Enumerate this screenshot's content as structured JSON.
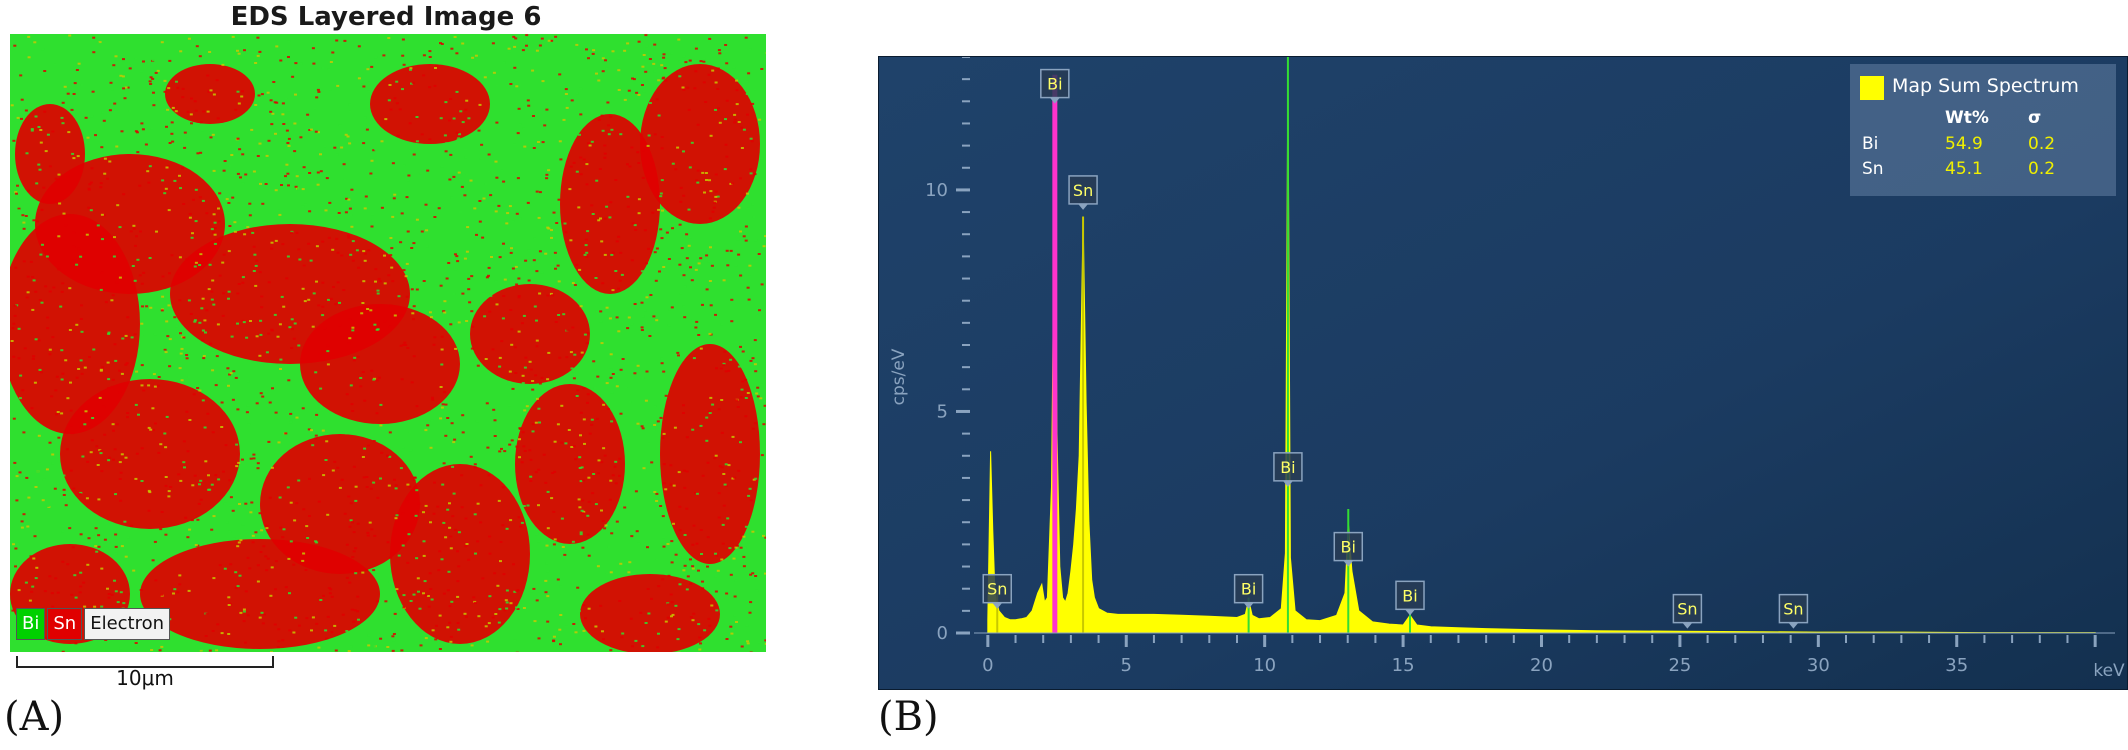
{
  "panel_a": {
    "title": "EDS Layered Image 6",
    "legend": [
      "Bi",
      "Sn",
      "Electron"
    ],
    "scale_label": "10μm",
    "panel_label": "(A)",
    "colors": {
      "Bi": "#2fe02f",
      "Sn": "#e00000"
    }
  },
  "panel_b": {
    "panel_label": "(B)",
    "table": {
      "title": "Map Sum Spectrum",
      "headers": [
        "Wt%",
        "σ"
      ],
      "rows": [
        {
          "element": "Bi",
          "wt": "54.9",
          "sigma": "0.2"
        },
        {
          "element": "Sn",
          "wt": "45.1",
          "sigma": "0.2"
        }
      ]
    }
  },
  "chart_data": {
    "type": "line",
    "title": "",
    "xlabel": "keV",
    "ylabel": "cps/eV",
    "xlim": [
      -0.5,
      40.5
    ],
    "ylim": [
      0,
      13
    ],
    "x_ticks": [
      "0",
      "5",
      "10",
      "15",
      "20",
      "25",
      "30",
      "35"
    ],
    "y_ticks": [
      "0",
      "5",
      "10"
    ],
    "colors": {
      "spectrum": "#ffff00",
      "Bi": "#33dd33",
      "Sn": "#c8c800",
      "Bi_M": "#ff33cc",
      "background": "#1e4068"
    },
    "series": [
      {
        "name": "Map Sum Spectrum",
        "x": [
          0.0,
          0.1,
          0.18,
          0.26,
          0.4,
          0.6,
          0.8,
          1.0,
          1.2,
          1.4,
          1.6,
          1.8,
          1.95,
          2.05,
          2.15,
          2.3,
          2.42,
          2.5,
          2.6,
          2.7,
          2.8,
          2.9,
          3.0,
          3.1,
          3.2,
          3.3,
          3.44,
          3.55,
          3.65,
          3.75,
          3.85,
          4.0,
          4.3,
          4.7,
          5.0,
          6.0,
          7.0,
          8.0,
          9.0,
          9.3,
          9.42,
          9.55,
          9.8,
          10.2,
          10.6,
          10.75,
          10.84,
          10.93,
          11.1,
          11.5,
          12.0,
          12.6,
          12.9,
          13.02,
          13.15,
          13.4,
          13.9,
          14.5,
          15.0,
          15.25,
          15.5,
          16.0,
          17.0,
          18.0,
          20.0,
          22.0,
          25.0,
          28.0,
          30.0,
          33.0,
          36.0,
          40.0
        ],
        "y": [
          0.3,
          4.1,
          2.3,
          0.9,
          0.5,
          0.35,
          0.3,
          0.3,
          0.32,
          0.35,
          0.5,
          0.9,
          1.1,
          0.7,
          0.8,
          3.3,
          10.8,
          4.5,
          1.5,
          0.8,
          0.7,
          0.9,
          1.4,
          2.0,
          2.8,
          4.0,
          9.4,
          5.2,
          2.5,
          1.2,
          0.8,
          0.55,
          0.45,
          0.42,
          0.42,
          0.42,
          0.4,
          0.38,
          0.35,
          0.42,
          0.75,
          0.4,
          0.32,
          0.35,
          0.55,
          1.8,
          12.9,
          1.7,
          0.5,
          0.3,
          0.28,
          0.4,
          0.9,
          2.5,
          1.4,
          0.5,
          0.25,
          0.2,
          0.18,
          0.4,
          0.18,
          0.14,
          0.12,
          0.1,
          0.07,
          0.05,
          0.04,
          0.03,
          0.02,
          0.02,
          0.01,
          0.01
        ]
      }
    ],
    "peak_markers": [
      {
        "label": "Bi",
        "x": 2.42,
        "line_to": 12.6,
        "color": "#ff33cc",
        "label_y": 12.4
      },
      {
        "label": "Sn",
        "x": 3.44,
        "line_to": 9.4,
        "color": "#c8c800",
        "label_y": 10.0
      },
      {
        "label": "Sn",
        "x": 0.34,
        "line_to": 0.9,
        "color": "#c8c800",
        "label_y": 1.0
      },
      {
        "label": "Bi",
        "x": 10.84,
        "line_to": 13.0,
        "color": "#33dd33",
        "label_y": 3.75
      },
      {
        "label": "Bi",
        "x": 9.42,
        "line_to": 0.8,
        "color": "#33dd33",
        "label_y": 1.0
      },
      {
        "label": "Bi",
        "x": 13.02,
        "line_to": 2.8,
        "color": "#33dd33",
        "label_y": 1.95
      },
      {
        "label": "Bi",
        "x": 15.25,
        "line_to": 0.45,
        "color": "#33dd33",
        "label_y": 0.85
      },
      {
        "label": "Sn",
        "x": 25.27,
        "line_to": 0.0,
        "color": "#c8c800",
        "label_y": 0.55
      },
      {
        "label": "Sn",
        "x": 29.1,
        "line_to": 0.0,
        "color": "#c8c800",
        "label_y": 0.55
      }
    ],
    "legend": "top-right",
    "grid": false
  }
}
